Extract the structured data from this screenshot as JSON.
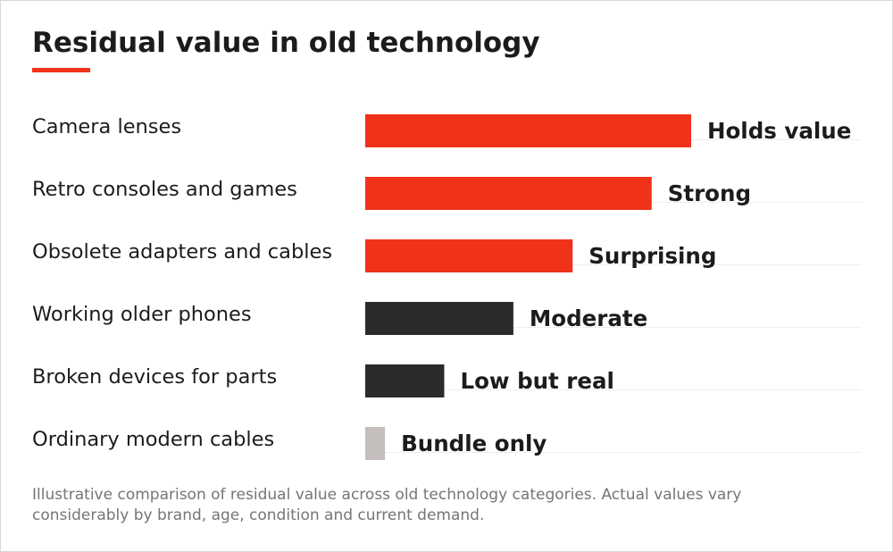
{
  "title": "Residual value in old technology",
  "footnote": "Illustrative comparison of residual value across old technology categories. Actual values vary considerably by brand, age, condition and current demand.",
  "colors": {
    "accent": "#f0321a",
    "dark": "#2b2b2b",
    "light": "#c4bfbd",
    "text": "#1c1c1c",
    "muted": "#757575",
    "gridline": "#eeeeee"
  },
  "chart_data": {
    "type": "bar",
    "orientation": "horizontal",
    "title": "Residual value in old technology",
    "xlabel": "",
    "ylabel": "",
    "xlim": [
      0,
      100
    ],
    "grid": false,
    "legend": "none",
    "categories": [
      "Camera lenses",
      "Retro consoles and games",
      "Obsolete adapters and cables",
      "Working older phones",
      "Broken devices for parts",
      "Ordinary modern cables"
    ],
    "values": [
      66,
      58,
      42,
      30,
      16,
      4
    ],
    "data_labels": [
      "Holds value",
      "Strong",
      "Surprising",
      "Moderate",
      "Low but real",
      "Bundle only"
    ],
    "bar_colors": [
      "#f0321a",
      "#f0321a",
      "#f0321a",
      "#2b2b2b",
      "#2b2b2b",
      "#c4bfbd"
    ]
  }
}
